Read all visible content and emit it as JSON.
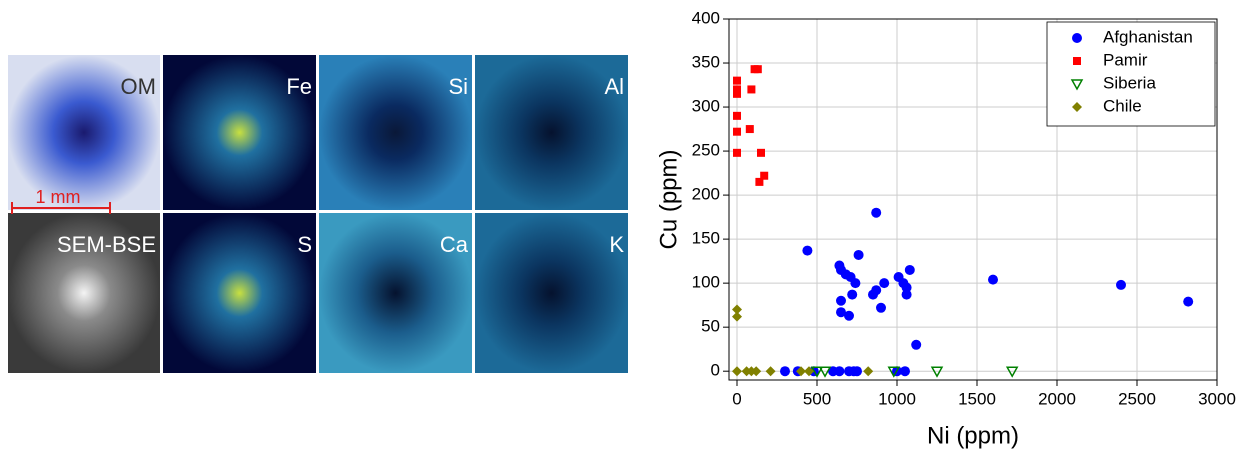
{
  "image_panels": {
    "labels": [
      "OM",
      "Fe",
      "Si",
      "Al",
      "SEM-BSE",
      "S",
      "Ca",
      "K"
    ],
    "scale_bar": "1 mm"
  },
  "chart_data": {
    "type": "scatter",
    "x_label": "Ni (ppm)",
    "y_label": "Cu (ppm)",
    "xlim": [
      -50,
      3000
    ],
    "ylim": [
      -10,
      400
    ],
    "xticks": [
      0,
      500,
      1000,
      1500,
      2000,
      2500,
      3000
    ],
    "yticks": [
      0,
      50,
      100,
      150,
      200,
      250,
      300,
      350,
      400
    ],
    "grid": true,
    "legend": "upper right",
    "series": [
      {
        "name": "Afghanistan",
        "color": "#0000ff",
        "marker": "circle",
        "x": [
          440,
          870,
          1600,
          2400,
          2820,
          1120,
          640,
          650,
          650,
          700,
          680,
          710,
          740,
          720,
          760,
          850,
          870,
          900,
          920,
          1010,
          1040,
          1060,
          1060,
          1080,
          650,
          300,
          380,
          480,
          600,
          640,
          700,
          730,
          750,
          1000,
          1050
        ],
        "values": [
          137,
          180,
          104,
          98,
          79,
          30,
          120,
          80,
          67,
          63,
          110,
          107,
          100,
          87,
          132,
          87,
          92,
          72,
          100,
          107,
          100,
          87,
          95,
          115,
          115,
          0,
          0,
          0,
          0,
          0,
          0,
          0,
          0,
          0,
          0
        ]
      },
      {
        "name": "Pamir",
        "color": "#ff0000",
        "marker": "square",
        "x": [
          0,
          0,
          0,
          0,
          0,
          0,
          80,
          110,
          130,
          150,
          140,
          170,
          90
        ],
        "values": [
          330,
          320,
          315,
          290,
          272,
          248,
          275,
          343,
          343,
          248,
          215,
          222,
          320
        ]
      },
      {
        "name": "Siberia",
        "color": "#008000",
        "marker": "triangle-down",
        "x": [
          500,
          550,
          980,
          1250,
          1720
        ],
        "values": [
          0,
          0,
          0,
          0,
          0
        ]
      },
      {
        "name": "Chile",
        "color": "#808000",
        "marker": "diamond",
        "x": [
          0,
          0,
          0,
          60,
          90,
          120,
          210,
          400,
          450,
          820
        ],
        "values": [
          70,
          62,
          0,
          0,
          0,
          0,
          0,
          0,
          0,
          0
        ]
      }
    ]
  }
}
